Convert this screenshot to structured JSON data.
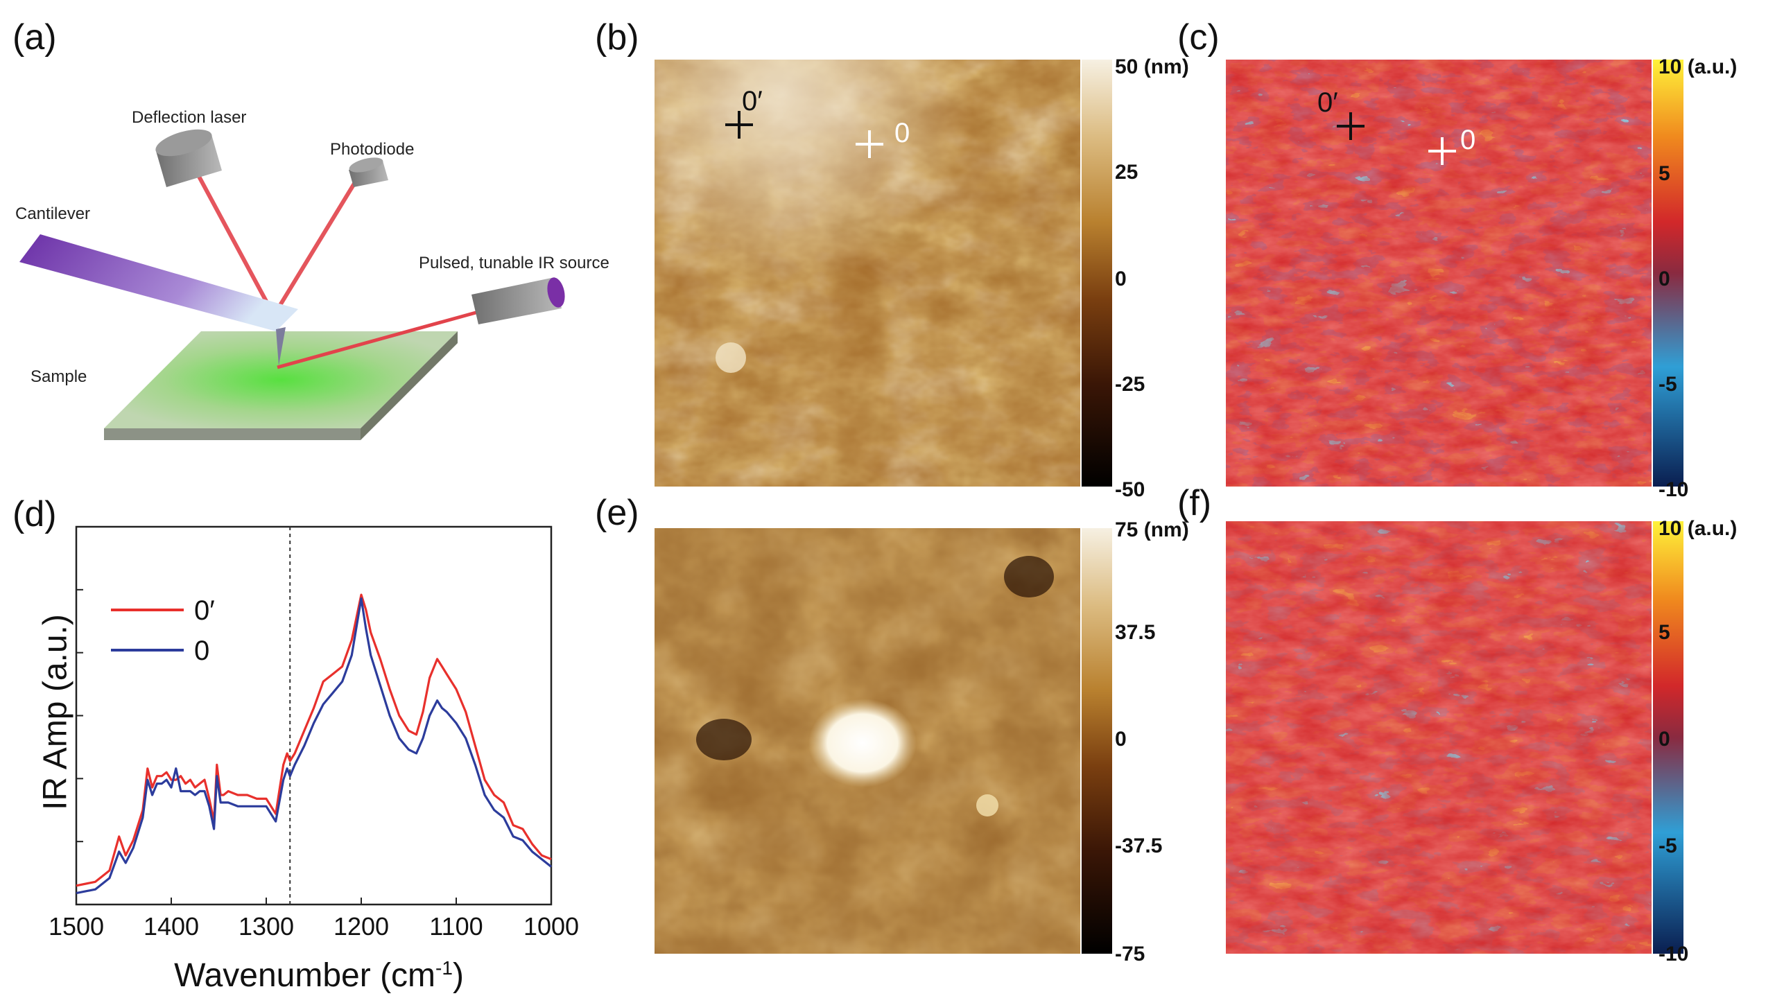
{
  "figure": {
    "panels": {
      "a": "(a)",
      "b": "(b)",
      "c": "(c)",
      "d": "(d)",
      "e": "(e)",
      "f": "(f)"
    },
    "schematic": {
      "labels": {
        "deflection_laser": "Deflection laser",
        "photodiode": "Photodiode",
        "cantilever": "Cantilever",
        "ir_source": "Pulsed, tunable IR source",
        "sample": "Sample"
      }
    },
    "map_b": {
      "colorbar_ticks": [
        "50 (nm)",
        "25",
        "0",
        "-25",
        "-50"
      ],
      "markers": [
        "0′",
        "0"
      ],
      "colormap": [
        "#000000",
        "#3a1606",
        "#7a3f10",
        "#b9812f",
        "#dcbc82",
        "#f6f0e2"
      ]
    },
    "map_c": {
      "colorbar_ticks": [
        "10 (a.u.)",
        "5",
        "0",
        "-5",
        "-10"
      ],
      "markers": [
        "0′",
        "0"
      ],
      "colormap": [
        "#0a1e50",
        "#2f9fd6",
        "#8a2a40",
        "#d2282a",
        "#f08a1e",
        "#fff23a"
      ]
    },
    "map_e": {
      "colorbar_ticks": [
        "75 (nm)",
        "37.5",
        "0",
        "-37.5",
        "-75"
      ]
    },
    "map_f": {
      "colorbar_ticks": [
        "10 (a.u.)",
        "5",
        "0",
        "-5",
        "-10"
      ]
    }
  },
  "chart_data": {
    "type": "line",
    "title": "",
    "xlabel": "Wavenumber (cm",
    "xlabel_sup": "-1",
    "xlabel_end": ")",
    "ylabel": "IR Amp (a.u.)",
    "xlim": [
      1500,
      1000
    ],
    "ylim": [
      0,
      1
    ],
    "x_ticks": [
      "1500",
      "1400",
      "1300",
      "1200",
      "1100",
      "1000"
    ],
    "x_tick_values": [
      1500,
      1400,
      1300,
      1200,
      1100,
      1000
    ],
    "vline": 1275,
    "legend_position": "top-left",
    "series": [
      {
        "name": "0′",
        "color": "#e8302c",
        "x": [
          1500,
          1480,
          1465,
          1455,
          1448,
          1440,
          1430,
          1425,
          1420,
          1415,
          1410,
          1405,
          1400,
          1395,
          1390,
          1385,
          1380,
          1375,
          1370,
          1365,
          1360,
          1355,
          1352,
          1348,
          1345,
          1340,
          1330,
          1320,
          1310,
          1300,
          1290,
          1282,
          1278,
          1275,
          1270,
          1260,
          1250,
          1240,
          1230,
          1220,
          1210,
          1200,
          1195,
          1190,
          1180,
          1170,
          1160,
          1150,
          1142,
          1135,
          1128,
          1120,
          1115,
          1110,
          1100,
          1090,
          1080,
          1070,
          1060,
          1050,
          1040,
          1030,
          1020,
          1010,
          1000
        ],
        "y": [
          0.05,
          0.06,
          0.09,
          0.18,
          0.13,
          0.17,
          0.25,
          0.36,
          0.31,
          0.34,
          0.34,
          0.35,
          0.33,
          0.33,
          0.34,
          0.32,
          0.33,
          0.31,
          0.32,
          0.33,
          0.28,
          0.22,
          0.37,
          0.29,
          0.29,
          0.3,
          0.29,
          0.29,
          0.28,
          0.28,
          0.24,
          0.37,
          0.4,
          0.38,
          0.4,
          0.46,
          0.52,
          0.59,
          0.61,
          0.63,
          0.7,
          0.82,
          0.78,
          0.72,
          0.65,
          0.57,
          0.5,
          0.46,
          0.45,
          0.51,
          0.6,
          0.65,
          0.63,
          0.61,
          0.57,
          0.51,
          0.42,
          0.33,
          0.29,
          0.27,
          0.21,
          0.2,
          0.16,
          0.13,
          0.12
        ]
      },
      {
        "name": "0",
        "color": "#2c3c9c",
        "x": [
          1500,
          1480,
          1465,
          1455,
          1448,
          1440,
          1430,
          1425,
          1420,
          1415,
          1410,
          1405,
          1400,
          1395,
          1390,
          1385,
          1380,
          1375,
          1370,
          1365,
          1360,
          1355,
          1352,
          1348,
          1345,
          1340,
          1330,
          1320,
          1310,
          1300,
          1290,
          1282,
          1278,
          1275,
          1270,
          1260,
          1250,
          1240,
          1230,
          1220,
          1210,
          1200,
          1195,
          1190,
          1180,
          1170,
          1160,
          1150,
          1142,
          1135,
          1128,
          1120,
          1115,
          1110,
          1100,
          1090,
          1080,
          1070,
          1060,
          1050,
          1040,
          1030,
          1020,
          1010,
          1000
        ],
        "y": [
          0.03,
          0.04,
          0.07,
          0.14,
          0.11,
          0.15,
          0.23,
          0.33,
          0.29,
          0.32,
          0.32,
          0.33,
          0.31,
          0.36,
          0.3,
          0.3,
          0.3,
          0.29,
          0.3,
          0.3,
          0.26,
          0.2,
          0.34,
          0.27,
          0.27,
          0.27,
          0.26,
          0.26,
          0.26,
          0.26,
          0.22,
          0.33,
          0.36,
          0.34,
          0.37,
          0.42,
          0.48,
          0.53,
          0.56,
          0.59,
          0.66,
          0.81,
          0.73,
          0.66,
          0.58,
          0.5,
          0.44,
          0.41,
          0.4,
          0.44,
          0.5,
          0.54,
          0.52,
          0.51,
          0.48,
          0.44,
          0.37,
          0.29,
          0.25,
          0.23,
          0.18,
          0.17,
          0.14,
          0.12,
          0.1
        ]
      }
    ]
  }
}
